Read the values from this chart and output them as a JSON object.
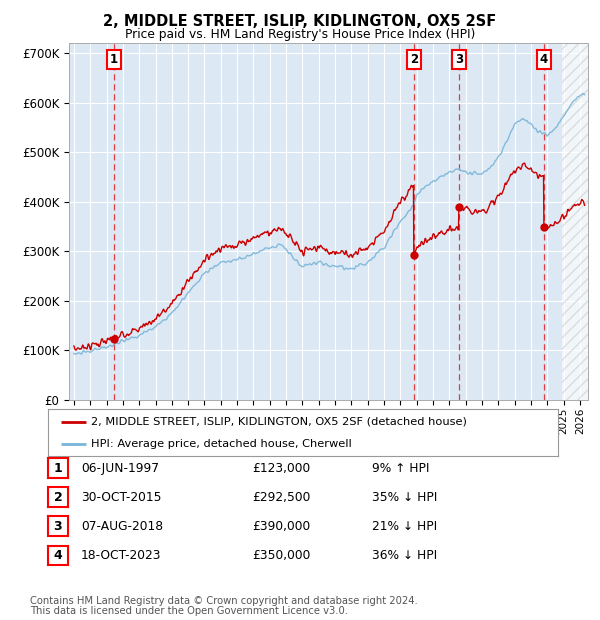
{
  "title": "2, MIDDLE STREET, ISLIP, KIDLINGTON, OX5 2SF",
  "subtitle": "Price paid vs. HM Land Registry's House Price Index (HPI)",
  "ylim": [
    0,
    720000
  ],
  "xlim_start": 1994.7,
  "xlim_end": 2026.5,
  "plot_bg_color": "#dce9f5",
  "hpi_line_color": "#7ab4d8",
  "price_line_color": "#cc0000",
  "transactions": [
    {
      "num": 1,
      "date_x": 1997.43,
      "price": 123000,
      "label": "06-JUN-1997",
      "price_str": "£123,000",
      "pct": "9% ↑ HPI"
    },
    {
      "num": 2,
      "date_x": 2015.83,
      "price": 292500,
      "label": "30-OCT-2015",
      "price_str": "£292,500",
      "pct": "35% ↓ HPI"
    },
    {
      "num": 3,
      "date_x": 2018.59,
      "price": 390000,
      "label": "07-AUG-2018",
      "price_str": "£390,000",
      "pct": "21% ↓ HPI"
    },
    {
      "num": 4,
      "date_x": 2023.79,
      "price": 350000,
      "label": "18-OCT-2023",
      "price_str": "£350,000",
      "pct": "36% ↓ HPI"
    }
  ],
  "legend_line1": "2, MIDDLE STREET, ISLIP, KIDLINGTON, OX5 2SF (detached house)",
  "legend_line2": "HPI: Average price, detached house, Cherwell",
  "footer1": "Contains HM Land Registry data © Crown copyright and database right 2024.",
  "footer2": "This data is licensed under the Open Government Licence v3.0.",
  "hatch_start": 2024.92
}
